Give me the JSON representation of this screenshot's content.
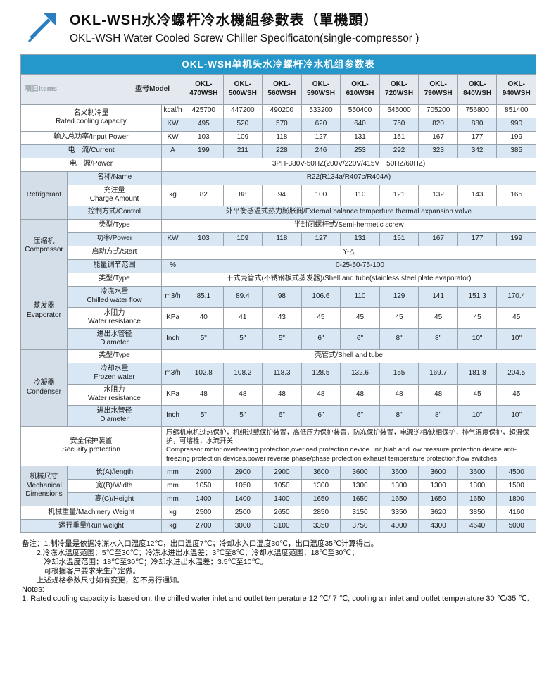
{
  "header": {
    "title_zh": "OKL-WSH水冷螺杆冷水機組參數表（單機頭）",
    "title_en": "OKL-WSH Water Cooled Screw Chiller Specificaton(single-compressor )"
  },
  "table": {
    "caption": "OKL-WSH单机头水冷螺杆冷水机组参数表",
    "corner": {
      "items": "項目Items",
      "model": "型号Model"
    },
    "models": [
      "OKL-470WSH",
      "OKL-500WSH",
      "OKL-560WSH",
      "OKL-590WSH",
      "OKL-610WSH",
      "OKL-720WSH",
      "OKL-790WSH",
      "OKL-840WSH",
      "OKL-940WSH"
    ],
    "rows": [
      {
        "label": "名义制冷量\nRated cooling capacity",
        "label_colspan": 2,
        "label_rowspan": 2,
        "unit": "kcal/h",
        "values": [
          "425700",
          "447200",
          "490200",
          "533200",
          "550400",
          "645000",
          "705200",
          "756800",
          "851400"
        ],
        "shade": false
      },
      {
        "unit": "KW",
        "values": [
          "495",
          "520",
          "570",
          "620",
          "640",
          "750",
          "820",
          "880",
          "990"
        ],
        "shade": true
      },
      {
        "label": "输入总功率/Input Power",
        "label_colspan": 2,
        "unit": "KW",
        "values": [
          "103",
          "109",
          "118",
          "127",
          "131",
          "151",
          "167",
          "177",
          "199"
        ],
        "shade": false
      },
      {
        "label": "电　流/Current",
        "label_colspan": 2,
        "unit": "A",
        "values": [
          "199",
          "211",
          "228",
          "246",
          "253",
          "292",
          "323",
          "342",
          "385"
        ],
        "shade": true
      },
      {
        "label": "电　源/Power",
        "label_colspan": 2,
        "span": "3PH-380V-50HZ(200V/220V/415V　50HZ/60HZ)",
        "shade": false
      },
      {
        "group": "Refrigerant",
        "group_rowspan": 3,
        "label": "名称/Name",
        "span": "R22(R134a/R407c/R404A)",
        "shade": true
      },
      {
        "label": "充注量\nCharge Amount",
        "unit": "kg",
        "values": [
          "82",
          "88",
          "94",
          "100",
          "110",
          "121",
          "132",
          "143",
          "165"
        ],
        "shade": false
      },
      {
        "label": "控制方式/Control",
        "span": "外平衡感温式热力膨胀阀/External balance temperture thermal expansion valve",
        "shade": true
      },
      {
        "group": "压缩机\nCompressor",
        "group_rowspan": 4,
        "label": "类型/Type",
        "span": "半封闭螺杆式/Semi-hermetic screw",
        "shade": false
      },
      {
        "label": "功率/Power",
        "unit": "KW",
        "values": [
          "103",
          "109",
          "118",
          "127",
          "131",
          "151",
          "167",
          "177",
          "199"
        ],
        "shade": true
      },
      {
        "label": "启动方式/Start",
        "span": "Y-△",
        "shade": false
      },
      {
        "label": "能量调节范围",
        "unit": "%",
        "span_data": "0-25-50-75-100",
        "shade": true
      },
      {
        "group": "蒸发器\nEvaporator",
        "group_rowspan": 4,
        "label": "类型/Type",
        "span": "干式壳管式(不锈钢板式蒸发器)/Shell and tube(stainless steel plate evaporator)",
        "shade": false
      },
      {
        "label": "冷冻水量\nChilled water flow",
        "unit": "m3/h",
        "values": [
          "85.1",
          "89.4",
          "98",
          "106.6",
          "110",
          "129",
          "141",
          "151.3",
          "170.4"
        ],
        "shade": true
      },
      {
        "label": "水阻力\nWater resistance",
        "unit": "KPa",
        "values": [
          "40",
          "41",
          "43",
          "45",
          "45",
          "45",
          "45",
          "45",
          "45"
        ],
        "shade": false
      },
      {
        "label": "进出水管径\nDiameter",
        "unit": "Inch",
        "values": [
          "5\"",
          "5\"",
          "5\"",
          "6\"",
          "6\"",
          "8\"",
          "8\"",
          "10\"",
          "10\""
        ],
        "shade": true
      },
      {
        "group": "冷凝器\nCondenser",
        "group_rowspan": 4,
        "label": "类型/Type",
        "span": "壳管式/Shell and tube",
        "shade": false
      },
      {
        "label": "冷却水量\nFrozen water",
        "unit": "m3/h",
        "values": [
          "102.8",
          "108.2",
          "118.3",
          "128.5",
          "132.6",
          "155",
          "169.7",
          "181.8",
          "204.5"
        ],
        "shade": true
      },
      {
        "label": "水阻力\nWater resistance",
        "unit": "KPa",
        "values": [
          "48",
          "48",
          "48",
          "48",
          "48",
          "48",
          "48",
          "45",
          "45"
        ],
        "shade": false
      },
      {
        "label": "进出水管径\nDiameter",
        "unit": "Inch",
        "values": [
          "5\"",
          "5\"",
          "6\"",
          "6\"",
          "6\"",
          "8\"",
          "8\"",
          "10\"",
          "10\""
        ],
        "shade": true
      },
      {
        "label": "安全保护装置\nSecurity protection",
        "label_colspan": 2,
        "span": "压缩机电机过热保护，机组过载保护装置，高低压力保护装置，防冻保护装置，电源逆相/缺相保护，排气温度保护，超温保护，可熔栓，水流开关\nCompressor motor overheating protection,overload protection device unit,hiah and low pressure protection device,anti-freezing protection devices,power reverse phase/phase protection,exhaust temperature protection,flow switches",
        "span_align": "left",
        "shade": false
      },
      {
        "group": "机械尺寸\nMechanical\nDimensions",
        "group_rowspan": 3,
        "label": "长(A)/length",
        "unit": "mm",
        "values": [
          "2900",
          "2900",
          "2900",
          "3600",
          "3600",
          "3600",
          "3600",
          "3600",
          "4500"
        ],
        "shade": true
      },
      {
        "label": "宽(B)/Width",
        "unit": "mm",
        "values": [
          "1050",
          "1050",
          "1050",
          "1300",
          "1300",
          "1300",
          "1300",
          "1300",
          "1500"
        ],
        "shade": false
      },
      {
        "label": "高(C)/Height",
        "unit": "mm",
        "values": [
          "1400",
          "1400",
          "1400",
          "1650",
          "1650",
          "1650",
          "1650",
          "1650",
          "1800"
        ],
        "shade": true
      },
      {
        "label": "机械重量/Machinery Weight",
        "label_colspan": 2,
        "unit": "kg",
        "values": [
          "2500",
          "2500",
          "2650",
          "2850",
          "3150",
          "3350",
          "3620",
          "3850",
          "4160"
        ],
        "shade": false
      },
      {
        "label": "运行重量/Run weight",
        "label_colspan": 2,
        "unit": "kg",
        "values": [
          "2700",
          "3000",
          "3100",
          "3350",
          "3750",
          "4000",
          "4300",
          "4640",
          "5000"
        ],
        "shade": true
      }
    ]
  },
  "notes": {
    "lines": [
      {
        "text": "备注：1.制冷量是依据冷冻水入口温度12℃，出口温度7℃；冷却水入口温度30℃，出口温度35℃计算得出。"
      },
      {
        "text": "　　2.冷冻水温度范围：5℃至30℃；冷冻水进出水温差：3℃至8℃；冷却水温度范围：18℃至30℃；"
      },
      {
        "text": "　　　冷却水温度范围：18℃至30℃；冷却水进出水温差：3.5℃至10℃。"
      },
      {
        "text": "　　　可根据客户要求来生产定做。"
      },
      {
        "text": "　　上述规格参数尺寸如有变更，恕不另行通知。"
      },
      {
        "text": "Notes:",
        "en": true
      },
      {
        "text": "1. Rated cooling capacity is based on: the chilled water inlet and outlet temperature 12 ℃/ 7 ℃; cooling air inlet and outlet temperature 30 ℃/35 ℃.",
        "en": true
      }
    ]
  },
  "colors": {
    "accent_blue": "#2497cb",
    "row_shade": "#d9e7f4",
    "header_bg": "#e3e9ef",
    "group_bg": "#d3dee9",
    "border": "#98a2ab",
    "logo_blue": "#2b7fc0"
  }
}
